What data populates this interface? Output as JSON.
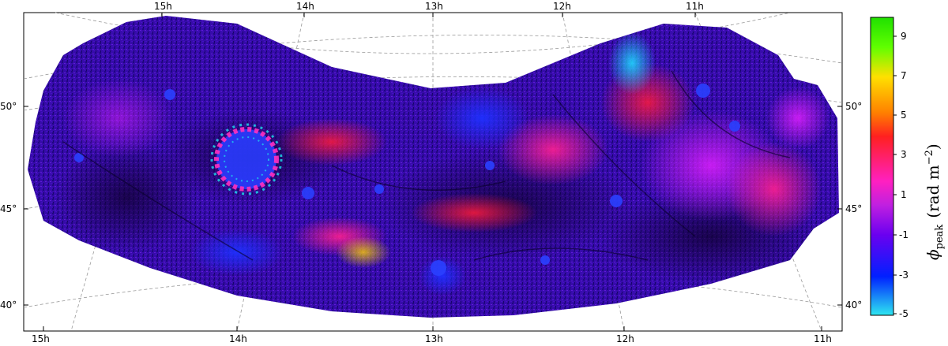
{
  "map": {
    "axes": {
      "top_ra_labels": [
        "15h",
        "14h",
        "13h",
        "12h",
        "11h"
      ],
      "bottom_ra_labels": [
        "15h",
        "14h",
        "13h",
        "12h",
        "11h"
      ],
      "left_dec_labels": [
        "50°",
        "45°",
        "40°"
      ],
      "right_dec_labels": [
        "50°",
        "45°",
        "40°"
      ]
    },
    "grid": true
  },
  "colorbar": {
    "ticks": [
      "9",
      "7",
      "5",
      "3",
      "1",
      "-1",
      "-3",
      "-5"
    ],
    "label_main": "ϕ",
    "label_sub": "peak",
    "label_units": "(rad m",
    "label_power": "−2",
    "label_close": ")",
    "range": [
      -5,
      10
    ],
    "colors": [
      "#2ee6f0",
      "#0020ff",
      "#6a00f0",
      "#c020e0",
      "#ff20c0",
      "#ff2020",
      "#ff8000",
      "#ffe000",
      "#60ff00",
      "#20e000"
    ]
  }
}
